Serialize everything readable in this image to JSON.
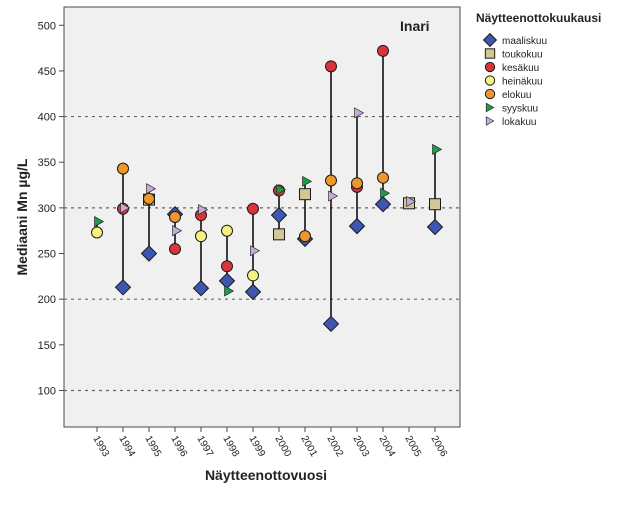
{
  "chart_data": {
    "type": "scatter",
    "title": "",
    "xlabel": "Näytteenottovuosi",
    "ylabel": "Mediaani Mn µg/L",
    "annotation": "Inari",
    "legend_title": "Näytteenottokuukausi",
    "legend_position": "right",
    "reference_lines_y": [
      100,
      200,
      300,
      400
    ],
    "ylim": [
      60,
      520
    ],
    "y_ticks": [
      100,
      150,
      200,
      250,
      300,
      350,
      400,
      450,
      500
    ],
    "categories": [
      "1993",
      "1994",
      "1995",
      "1996",
      "1997",
      "1998",
      "1999",
      "2000",
      "2001",
      "2002",
      "2003",
      "2004",
      "2005",
      "2006"
    ],
    "series": [
      {
        "name": "maaliskuu",
        "marker": "diamond",
        "color": "#3d56b0",
        "points": [
          {
            "x": "1994",
            "y": 213
          },
          {
            "x": "1995",
            "y": 250
          },
          {
            "x": "1996",
            "y": 293
          },
          {
            "x": "1997",
            "y": 212
          },
          {
            "x": "1998",
            "y": 220
          },
          {
            "x": "1999",
            "y": 208
          },
          {
            "x": "2000",
            "y": 292
          },
          {
            "x": "2001",
            "y": 266
          },
          {
            "x": "2002",
            "y": 173
          },
          {
            "x": "2003",
            "y": 280
          },
          {
            "x": "2004",
            "y": 304
          },
          {
            "x": "2006",
            "y": 279
          }
        ]
      },
      {
        "name": "toukokuu",
        "marker": "square",
        "color": "#d2c896",
        "points": [
          {
            "x": "1995",
            "y": 309
          },
          {
            "x": "2000",
            "y": 271
          },
          {
            "x": "2001",
            "y": 315
          },
          {
            "x": "2005",
            "y": 305
          },
          {
            "x": "2006",
            "y": 304
          }
        ]
      },
      {
        "name": "kesäkuu",
        "marker": "circle",
        "color": "#d9343a",
        "points": [
          {
            "x": "1994",
            "y": 299
          },
          {
            "x": "1996",
            "y": 255
          },
          {
            "x": "1997",
            "y": 292
          },
          {
            "x": "1998",
            "y": 236
          },
          {
            "x": "1999",
            "y": 299
          },
          {
            "x": "2000",
            "y": 319
          },
          {
            "x": "2002",
            "y": 455
          },
          {
            "x": "2003",
            "y": 323
          },
          {
            "x": "2004",
            "y": 472
          }
        ]
      },
      {
        "name": "heinäkuu",
        "marker": "circle",
        "color": "#f7f27d",
        "points": [
          {
            "x": "1993",
            "y": 273
          },
          {
            "x": "1997",
            "y": 269
          },
          {
            "x": "1998",
            "y": 275
          },
          {
            "x": "1999",
            "y": 226
          }
        ]
      },
      {
        "name": "elokuu",
        "marker": "circle",
        "color": "#f0962a",
        "points": [
          {
            "x": "1994",
            "y": 343
          },
          {
            "x": "1995",
            "y": 310
          },
          {
            "x": "1996",
            "y": 290
          },
          {
            "x": "2001",
            "y": 269
          },
          {
            "x": "2002",
            "y": 330
          },
          {
            "x": "2003",
            "y": 327
          },
          {
            "x": "2004",
            "y": 333
          }
        ]
      },
      {
        "name": "syyskuu",
        "marker": "triangle-right",
        "color": "#1e9a4a",
        "points": [
          {
            "x": "1993",
            "y": 285
          },
          {
            "x": "1998",
            "y": 209
          },
          {
            "x": "2000",
            "y": 320
          },
          {
            "x": "2001",
            "y": 329
          },
          {
            "x": "2004",
            "y": 316
          },
          {
            "x": "2006",
            "y": 364
          }
        ]
      },
      {
        "name": "lokakuu",
        "marker": "triangle-right",
        "color": "#c4aad6",
        "points": [
          {
            "x": "1994",
            "y": 300
          },
          {
            "x": "1995",
            "y": 321
          },
          {
            "x": "1996",
            "y": 275
          },
          {
            "x": "1997",
            "y": 298
          },
          {
            "x": "1999",
            "y": 253
          },
          {
            "x": "2002",
            "y": 313
          },
          {
            "x": "2003",
            "y": 404
          },
          {
            "x": "2005",
            "y": 307
          }
        ]
      }
    ]
  }
}
